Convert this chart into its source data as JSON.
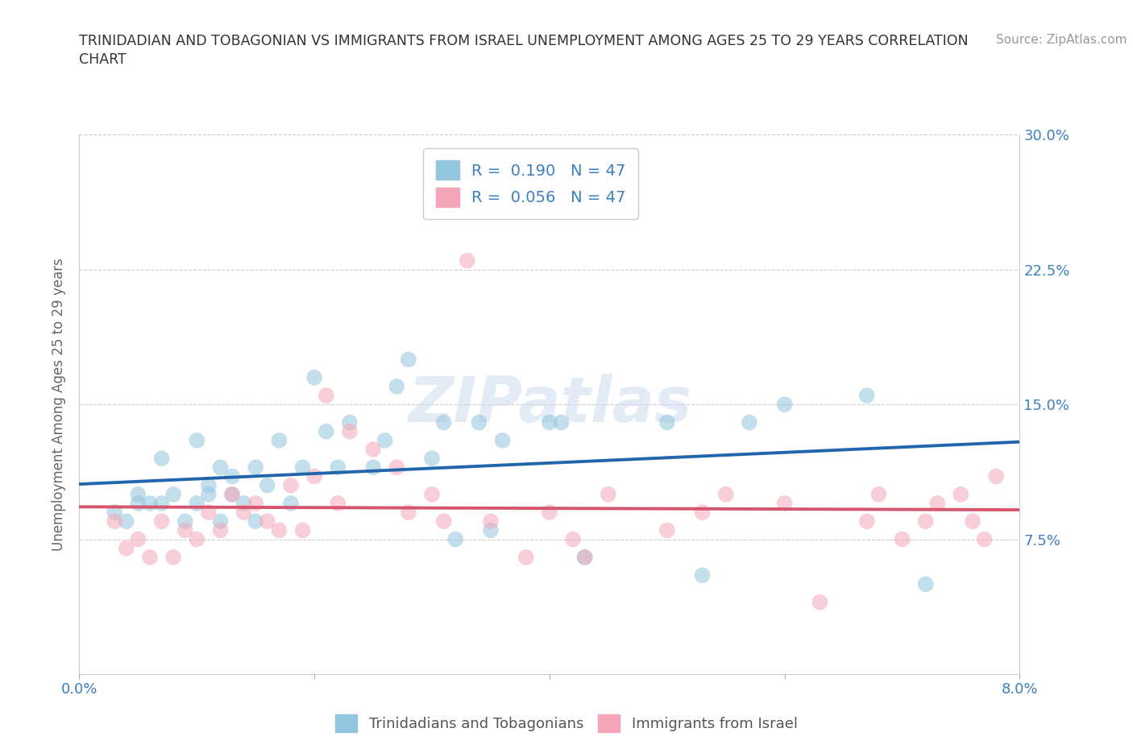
{
  "title_line1": "TRINIDADIAN AND TOBAGONIAN VS IMMIGRANTS FROM ISRAEL UNEMPLOYMENT AMONG AGES 25 TO 29 YEARS CORRELATION",
  "title_line2": "CHART",
  "source_text": "Source: ZipAtlas.com",
  "ylabel": "Unemployment Among Ages 25 to 29 years",
  "xlim": [
    0.0,
    0.08
  ],
  "ylim": [
    0.0,
    0.3
  ],
  "x_ticks": [
    0.0,
    0.02,
    0.04,
    0.06,
    0.08
  ],
  "x_tick_labels": [
    "0.0%",
    "",
    "",
    "",
    "8.0%"
  ],
  "y_ticks": [
    0.0,
    0.075,
    0.15,
    0.225,
    0.3
  ],
  "y_tick_labels": [
    "",
    "7.5%",
    "15.0%",
    "22.5%",
    "30.0%"
  ],
  "blue_color": "#92c5de",
  "pink_color": "#f4a6b8",
  "blue_line_color": "#2166ac",
  "pink_line_color": "#d6546e",
  "legend_blue_label": "R =  0.190   N = 47",
  "legend_pink_label": "R =  0.056   N = 47",
  "bottom_legend_blue": "Trinidadians and Tobagonians",
  "bottom_legend_pink": "Immigrants from Israel",
  "blue_scatter_x": [
    0.003,
    0.004,
    0.005,
    0.005,
    0.006,
    0.007,
    0.007,
    0.008,
    0.009,
    0.01,
    0.01,
    0.011,
    0.011,
    0.012,
    0.012,
    0.013,
    0.013,
    0.014,
    0.015,
    0.015,
    0.016,
    0.017,
    0.018,
    0.019,
    0.02,
    0.021,
    0.022,
    0.023,
    0.025,
    0.026,
    0.027,
    0.028,
    0.03,
    0.031,
    0.032,
    0.034,
    0.035,
    0.036,
    0.04,
    0.041,
    0.043,
    0.05,
    0.053,
    0.057,
    0.06,
    0.067,
    0.072
  ],
  "blue_scatter_y": [
    0.09,
    0.085,
    0.095,
    0.1,
    0.095,
    0.095,
    0.12,
    0.1,
    0.085,
    0.095,
    0.13,
    0.1,
    0.105,
    0.085,
    0.115,
    0.1,
    0.11,
    0.095,
    0.085,
    0.115,
    0.105,
    0.13,
    0.095,
    0.115,
    0.165,
    0.135,
    0.115,
    0.14,
    0.115,
    0.13,
    0.16,
    0.175,
    0.12,
    0.14,
    0.075,
    0.14,
    0.08,
    0.13,
    0.14,
    0.14,
    0.065,
    0.14,
    0.055,
    0.14,
    0.15,
    0.155,
    0.05
  ],
  "pink_scatter_x": [
    0.003,
    0.004,
    0.005,
    0.006,
    0.007,
    0.008,
    0.009,
    0.01,
    0.011,
    0.012,
    0.013,
    0.014,
    0.015,
    0.016,
    0.017,
    0.018,
    0.019,
    0.02,
    0.021,
    0.022,
    0.023,
    0.025,
    0.027,
    0.028,
    0.03,
    0.031,
    0.033,
    0.035,
    0.038,
    0.04,
    0.042,
    0.043,
    0.045,
    0.05,
    0.053,
    0.055,
    0.06,
    0.063,
    0.067,
    0.068,
    0.07,
    0.072,
    0.073,
    0.075,
    0.076,
    0.077,
    0.078
  ],
  "pink_scatter_y": [
    0.085,
    0.07,
    0.075,
    0.065,
    0.085,
    0.065,
    0.08,
    0.075,
    0.09,
    0.08,
    0.1,
    0.09,
    0.095,
    0.085,
    0.08,
    0.105,
    0.08,
    0.11,
    0.155,
    0.095,
    0.135,
    0.125,
    0.115,
    0.09,
    0.1,
    0.085,
    0.23,
    0.085,
    0.065,
    0.09,
    0.075,
    0.065,
    0.1,
    0.08,
    0.09,
    0.1,
    0.095,
    0.04,
    0.085,
    0.1,
    0.075,
    0.085,
    0.095,
    0.1,
    0.085,
    0.075,
    0.11
  ]
}
